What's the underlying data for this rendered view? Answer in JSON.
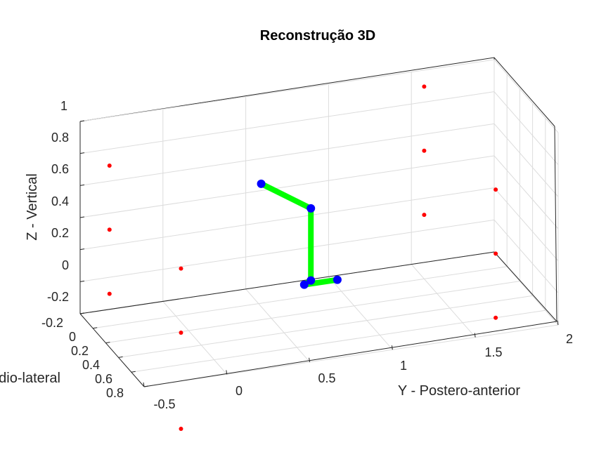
{
  "chart_data": {
    "type": "scatter3d",
    "title": "Reconstrução 3D",
    "xlabel": "X - Médio-lateral",
    "xlabel_visible": "dio-lateral",
    "ylabel": "Y - Postero-anterior",
    "zlabel": "Z - Vertical",
    "xlim": [
      -0.2,
      0.8
    ],
    "ylim": [
      -0.5,
      2
    ],
    "zlim": [
      -0.2,
      1
    ],
    "x_ticks": [
      "-0.2",
      "0",
      "0.2",
      "0.4",
      "0.6",
      "0.8"
    ],
    "y_ticks": [
      "-0.5",
      "0",
      "0.5",
      "1",
      "1.5",
      "2"
    ],
    "z_ticks": [
      "-0.2",
      "0",
      "0.2",
      "0.4",
      "0.6",
      "0.8",
      "1"
    ],
    "grid": true,
    "colors": {
      "markers": "#ff0000",
      "joints": "#0000ff",
      "segments": "#00ff00"
    },
    "series": [
      {
        "name": "",
        "style": "red-markers",
        "points": [
          {
            "x": 0,
            "y": -0.4,
            "z": 0.8
          },
          {
            "x": 0,
            "y": -0.4,
            "z": 0.4
          },
          {
            "x": 0,
            "y": -0.4,
            "z": 0
          },
          {
            "x": 0.6,
            "y": -0.2,
            "z": 0.4
          },
          {
            "x": 0.6,
            "y": -0.2,
            "z": 0
          },
          {
            "x": 0,
            "y": 1.5,
            "z": 1
          },
          {
            "x": 0,
            "y": 1.5,
            "z": 0.6
          },
          {
            "x": 0,
            "y": 1.5,
            "z": 0.2
          },
          {
            "x": 0.6,
            "y": 1.7,
            "z": 0.6
          },
          {
            "x": 0.6,
            "y": 1.7,
            "z": 0.2
          },
          {
            "x": 0.6,
            "y": 1.7,
            "z": -0.2
          },
          {
            "x": 0.6,
            "y": -0.2,
            "z": -0.6
          }
        ]
      },
      {
        "name": "",
        "style": "green-segments-blue-joints",
        "points": [
          {
            "x": 0.3,
            "y": 0.4,
            "z": 0.7
          },
          {
            "x": 0.3,
            "y": 0.7,
            "z": 0.5
          },
          {
            "x": 0.3,
            "y": 0.7,
            "z": 0.05
          },
          {
            "x": 0.3,
            "y": 0.66,
            "z": 0.03
          },
          {
            "x": 0.3,
            "y": 0.86,
            "z": 0.03
          }
        ]
      }
    ]
  }
}
